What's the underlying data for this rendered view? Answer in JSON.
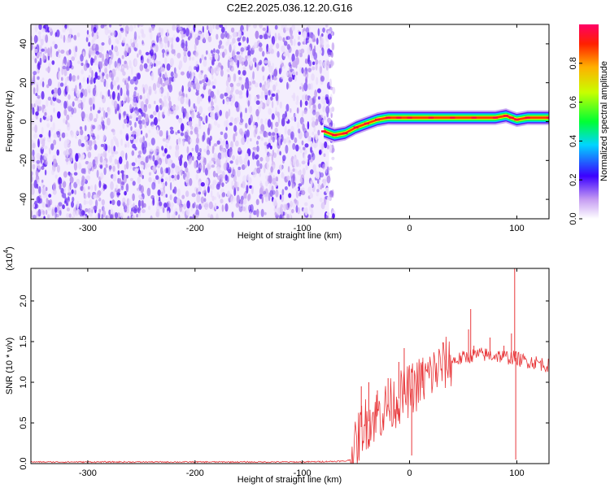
{
  "chart_data": [
    {
      "type": "heatmap",
      "title": "C2E2.2025.036.12.20.G16",
      "xlabel": "Height of straight line (km)",
      "ylabel": "Frequency (Hz)",
      "xlim": [
        -353,
        130
      ],
      "ylim": [
        -50,
        50
      ],
      "xticks": [
        -300,
        -200,
        -100,
        0,
        100
      ],
      "yticks": [
        -40,
        -20,
        0,
        20,
        40
      ],
      "colorbar": {
        "label": "Normalized spectral amplitude",
        "range": [
          0.0,
          1.0
        ],
        "ticks": [
          0.0,
          0.2,
          0.4,
          0.6,
          0.8
        ],
        "tick_labels": [
          "0.0",
          "0.2",
          "0.4",
          "0.6",
          "0.8"
        ]
      },
      "noise_region_x": [
        -353,
        -75
      ],
      "signal_ridge": {
        "x": [
          -80,
          -70,
          -60,
          -50,
          -40,
          -30,
          -20,
          -10,
          0,
          20,
          40,
          60,
          80,
          90,
          95,
          100,
          110,
          130
        ],
        "y": [
          -5,
          -7,
          -6,
          -3,
          -1,
          1,
          2,
          2,
          2,
          2,
          2,
          2,
          2,
          3,
          2,
          1,
          2,
          2
        ],
        "peak_amplitude": 1.0
      }
    },
    {
      "type": "line",
      "xlabel": "Height of straight line (km)",
      "ylabel": "SNR (10 * v/v)",
      "y_multiplier": "(x10",
      "y_multiplier_exp": "4",
      "y_multiplier_close": ")",
      "xlim": [
        -353,
        130
      ],
      "ylim": [
        0,
        2.4
      ],
      "xticks": [
        -300,
        -200,
        -100,
        0,
        100
      ],
      "yticks": [
        0.0,
        0.5,
        1.0,
        1.5,
        2.0
      ],
      "ytick_labels": [
        "0.0",
        "0.5",
        "1.0",
        "1.5",
        "2.0"
      ],
      "color": "#e8373a",
      "series": [
        {
          "x": [
            -353,
            -300,
            -200,
            -100,
            -60,
            -55,
            -50,
            -45,
            -40,
            -35,
            -30,
            -25,
            -20,
            -15,
            -10,
            -5,
            0,
            5,
            10,
            15,
            20,
            25,
            30,
            35,
            40,
            45,
            50,
            55,
            60,
            65,
            70,
            75,
            80,
            85,
            90,
            95,
            98,
            100,
            102,
            105,
            110,
            115,
            120,
            125,
            130
          ],
          "y": [
            0.02,
            0.02,
            0.02,
            0.02,
            0.03,
            0.05,
            0.2,
            0.45,
            0.5,
            0.55,
            0.6,
            0.65,
            0.7,
            0.75,
            0.8,
            0.85,
            0.9,
            0.95,
            1.0,
            1.05,
            1.1,
            1.15,
            1.2,
            1.24,
            1.26,
            1.28,
            1.3,
            1.32,
            1.33,
            1.34,
            1.34,
            1.33,
            1.33,
            1.32,
            1.31,
            1.3,
            1.3,
            1.3,
            1.28,
            1.27,
            1.26,
            1.25,
            1.24,
            1.22,
            1.2
          ]
        }
      ],
      "spikes": [
        {
          "x": -45,
          "y": 0.95
        },
        {
          "x": -38,
          "y": 1.0
        },
        {
          "x": -30,
          "y": 0.9
        },
        {
          "x": -20,
          "y": 1.05
        },
        {
          "x": -10,
          "y": 1.25
        },
        {
          "x": -5,
          "y": 1.42
        },
        {
          "x": 2,
          "y": 0.1
        },
        {
          "x": 12,
          "y": 1.25
        },
        {
          "x": 55,
          "y": 1.65
        },
        {
          "x": 57,
          "y": 1.9
        },
        {
          "x": 60,
          "y": 1.45
        },
        {
          "x": 75,
          "y": 1.55
        },
        {
          "x": 88,
          "y": 1.45
        },
        {
          "x": 95,
          "y": 1.6
        },
        {
          "x": 98,
          "y": 2.4
        },
        {
          "x": 99,
          "y": 0.05
        }
      ]
    }
  ]
}
